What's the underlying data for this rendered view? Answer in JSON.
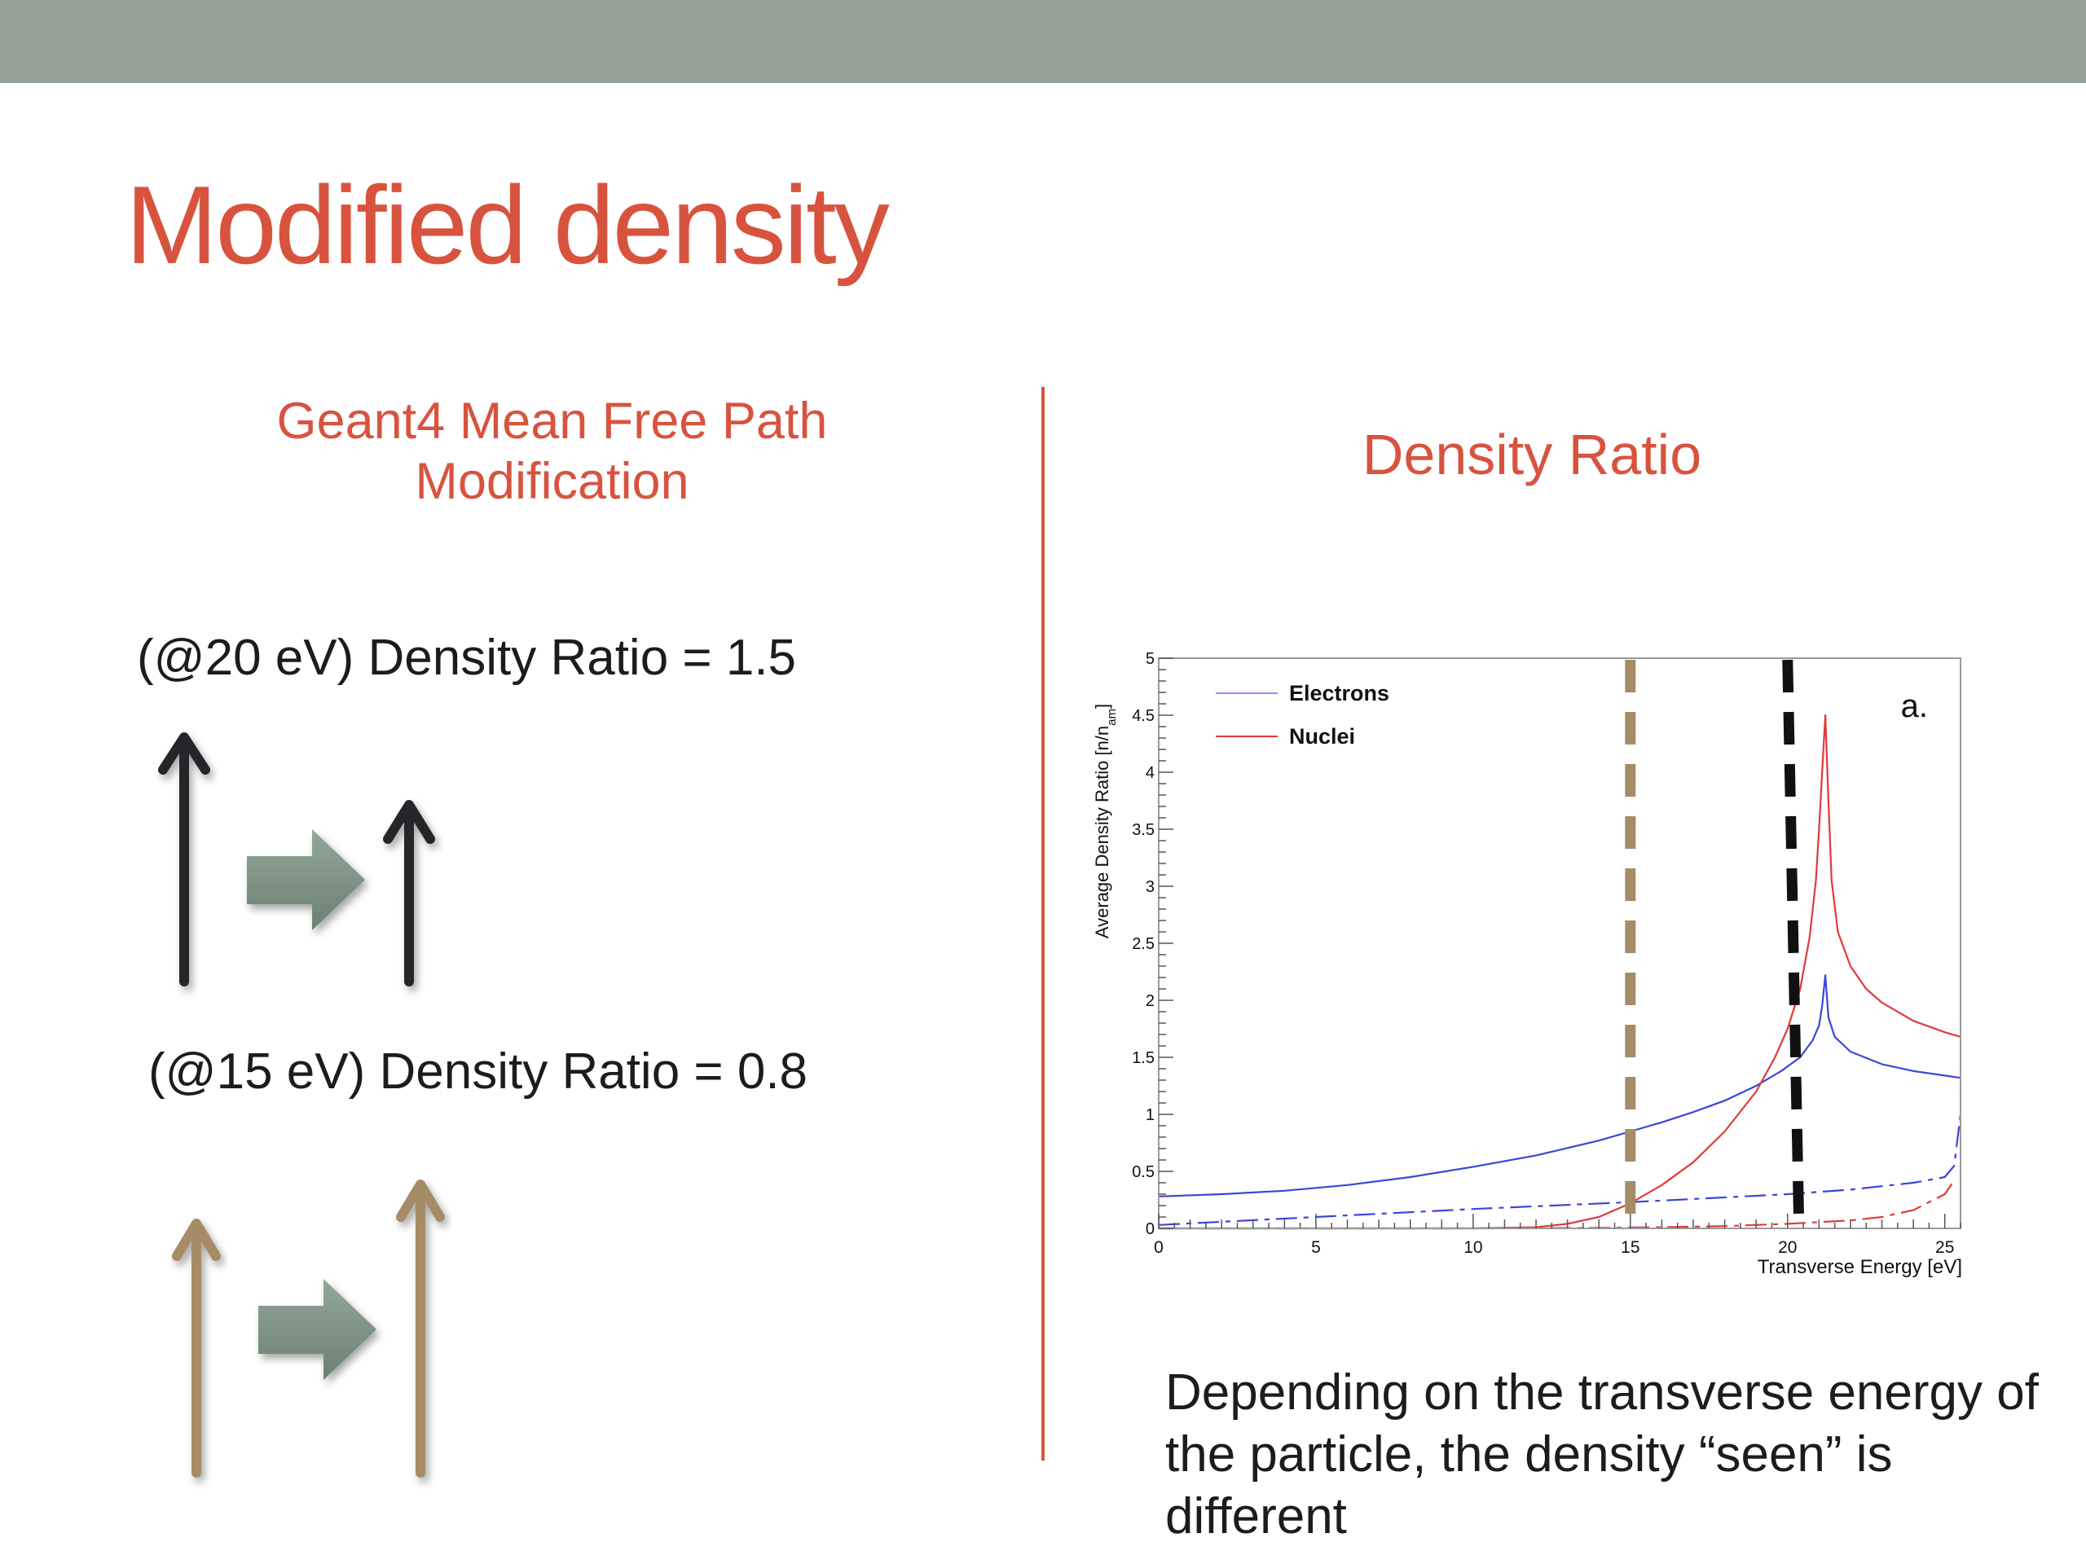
{
  "slide": {
    "title": "Modified density",
    "left_heading": [
      "Geant4 Mean Free Path",
      "Modification"
    ],
    "right_heading": "Density Ratio",
    "label_20ev": "(@20 eV) Density Ratio = 1.5",
    "label_15ev": "(@15 eV) Density Ratio = 0.8",
    "caption": "Depending on the transverse energy of the particle, the density “seen” is different",
    "colors": {
      "accent": "#d8533e",
      "top_bar": "#94a29a",
      "dark_arrow": "#25262b",
      "tan_arrow": "#a68c66",
      "green_arrow": "#7f9386"
    },
    "icons": [
      "up-arrow-icon",
      "right-arrow-icon"
    ]
  },
  "chart_data": {
    "type": "line",
    "title": "",
    "panel_label": "a.",
    "xlabel": "Transverse Energy [eV]",
    "ylabel": "Average Density Ratio [n/n",
    "ylabel_sub": "am",
    "ylabel_close": "]",
    "xlim": [
      0,
      25.5
    ],
    "ylim": [
      0,
      5
    ],
    "x_ticks": [
      "0",
      "5",
      "10",
      "15",
      "20",
      "25"
    ],
    "y_ticks": [
      "0",
      "0.5",
      "1",
      "1.5",
      "2",
      "2.5",
      "3",
      "3.5",
      "4",
      "4.5",
      "5"
    ],
    "legend": {
      "position": "top-left",
      "entries": [
        "Electrons",
        "Nuclei"
      ]
    },
    "series": [
      {
        "name": "Electrons",
        "color": "#3a46d8",
        "style": "solid",
        "x": [
          0,
          2,
          4,
          6,
          8,
          10,
          12,
          14,
          15,
          16,
          17,
          18,
          19,
          19.8,
          20.4,
          20.8,
          21.0,
          21.1,
          21.2,
          21.3,
          21.5,
          22,
          23,
          24,
          25,
          25.5
        ],
        "y": [
          0.28,
          0.3,
          0.33,
          0.38,
          0.45,
          0.54,
          0.64,
          0.77,
          0.85,
          0.93,
          1.02,
          1.12,
          1.25,
          1.38,
          1.5,
          1.65,
          1.78,
          1.95,
          2.22,
          1.85,
          1.68,
          1.55,
          1.44,
          1.38,
          1.34,
          1.32
        ]
      },
      {
        "name": "Nuclei",
        "color": "#e03a3a",
        "style": "solid",
        "x": [
          0,
          5,
          10,
          12,
          13,
          14,
          15,
          16,
          17,
          18,
          19,
          19.6,
          20,
          20.4,
          20.7,
          20.9,
          21.0,
          21.1,
          21.2,
          21.3,
          21.4,
          21.6,
          22,
          22.5,
          23,
          24,
          25,
          25.5
        ],
        "y": [
          0,
          0,
          0,
          0.01,
          0.04,
          0.1,
          0.22,
          0.38,
          0.58,
          0.85,
          1.2,
          1.5,
          1.75,
          2.1,
          2.55,
          3.05,
          3.5,
          4.0,
          4.5,
          3.75,
          3.05,
          2.6,
          2.3,
          2.1,
          1.98,
          1.82,
          1.72,
          1.68
        ]
      },
      {
        "name": "",
        "color": "#3a46d8",
        "style": "dashed",
        "x": [
          0,
          5,
          10,
          15,
          20,
          22,
          24,
          25,
          25.3,
          25.5
        ],
        "y": [
          0.03,
          0.1,
          0.17,
          0.23,
          0.3,
          0.34,
          0.4,
          0.45,
          0.55,
          1.0
        ]
      },
      {
        "name": "",
        "color": "#e03a3a",
        "style": "dashed",
        "x": [
          0,
          10,
          14,
          16,
          18,
          20,
          22,
          23,
          24,
          25,
          25.3
        ],
        "y": [
          0,
          0,
          0.005,
          0.01,
          0.02,
          0.04,
          0.07,
          0.1,
          0.16,
          0.3,
          0.42
        ]
      }
    ],
    "markers": [
      {
        "x": 15,
        "color": "#a68c66",
        "style": "dashed"
      },
      {
        "x": 20,
        "color": "#111111",
        "style": "dashed"
      }
    ]
  }
}
